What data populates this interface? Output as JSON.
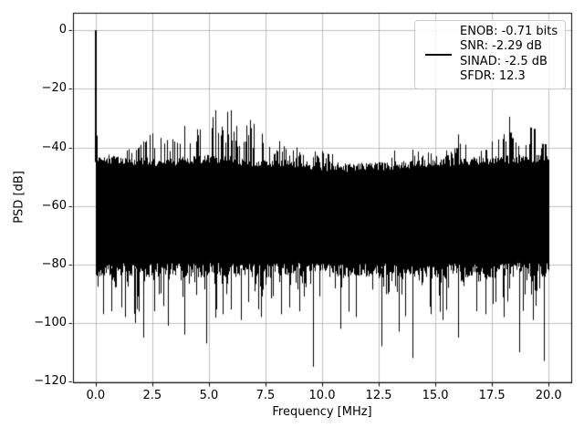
{
  "chart_data": {
    "type": "line",
    "title": "",
    "xlabel": "Frequency [MHz]",
    "ylabel": "PSD [dB]",
    "xlim": [
      -1,
      21
    ],
    "ylim": [
      -120.3,
      6
    ],
    "xticks": [
      0,
      2.5,
      5,
      7.5,
      10,
      12.5,
      15,
      17.5,
      20
    ],
    "xticklabels": [
      "0.0",
      "2.5",
      "5.0",
      "7.5",
      "10.0",
      "12.5",
      "15.0",
      "17.5",
      "20.0"
    ],
    "yticks": [
      0,
      -20,
      -40,
      -60,
      -80,
      -100,
      -120
    ],
    "yticklabels": [
      "0",
      "−20",
      "−40",
      "−60",
      "−80",
      "−100",
      "−120"
    ],
    "grid": true,
    "grid_color": "#b0b0b0",
    "spine_color": "#000000",
    "line_color": "#000000",
    "background_color": "#ffffff",
    "legend": {
      "position": "upper right",
      "edge_color": "#cccccc",
      "face_color": "#ffffff",
      "face_alpha": 0.8,
      "handle_color": "#000000",
      "lines": [
        "ENOB: -0.71 bits",
        "SNR: -2.29 dB",
        "SINAD: -2.5 dB",
        "SFDR: 12.3"
      ]
    },
    "signal": {
      "dc_spike": {
        "freq_mhz": 0.0,
        "peak_db": 0
      },
      "noise_dense_bottom_db": -82,
      "noise_top_envelope_db": [
        [
          0,
          -43.5
        ],
        [
          1,
          -44.5
        ],
        [
          3,
          -45
        ],
        [
          5,
          -44
        ],
        [
          7,
          -45
        ],
        [
          9,
          -46
        ],
        [
          11,
          -47
        ],
        [
          12.5,
          -46.5
        ],
        [
          14,
          -46
        ],
        [
          15.5,
          -45
        ],
        [
          17,
          -44.5
        ],
        [
          18.5,
          -44
        ],
        [
          20,
          -43.5
        ]
      ],
      "spur_peak_envelope_db": [
        [
          0,
          -43
        ],
        [
          0.8,
          -41
        ],
        [
          1.6,
          -39
        ],
        [
          2.2,
          -34
        ],
        [
          2.6,
          -33
        ],
        [
          3.1,
          -35
        ],
        [
          3.6,
          -32.5
        ],
        [
          4.2,
          -31
        ],
        [
          4.6,
          -29
        ],
        [
          5.0,
          -25.5
        ],
        [
          5.4,
          -26.5
        ],
        [
          5.9,
          -27
        ],
        [
          6.3,
          -28.5
        ],
        [
          6.8,
          -30.5
        ],
        [
          7.4,
          -33
        ],
        [
          7.9,
          -35.5
        ],
        [
          8.5,
          -37
        ],
        [
          9.2,
          -38.5
        ],
        [
          9.7,
          -40
        ],
        [
          10.3,
          -41.5
        ],
        [
          11,
          -43.5
        ],
        [
          11.8,
          -45
        ],
        [
          12.4,
          -44
        ],
        [
          13.0,
          -41.5
        ],
        [
          13.5,
          -37.5
        ],
        [
          14.1,
          -39.5
        ],
        [
          14.7,
          -40.5
        ],
        [
          15.3,
          -41.5
        ],
        [
          15.9,
          -34.5
        ],
        [
          16.5,
          -37
        ],
        [
          17.1,
          -34
        ],
        [
          17.6,
          -30
        ],
        [
          18.1,
          -28.5
        ],
        [
          18.6,
          -31.5
        ],
        [
          19.1,
          -28.5
        ],
        [
          19.5,
          -30.5
        ],
        [
          20,
          -35.5
        ]
      ],
      "deep_nulls": [
        [
          0.33,
          -97
        ],
        [
          0.7,
          -96
        ],
        [
          1.3,
          -98
        ],
        [
          1.75,
          -100
        ],
        [
          2.1,
          -105
        ],
        [
          2.6,
          -96
        ],
        [
          3.2,
          -101
        ],
        [
          3.9,
          -104
        ],
        [
          4.9,
          -107
        ],
        [
          5.6,
          -97
        ],
        [
          6.4,
          -99
        ],
        [
          7.3,
          -98
        ],
        [
          8.2,
          -97
        ],
        [
          9.0,
          -96
        ],
        [
          9.6,
          -115
        ],
        [
          10.8,
          -102
        ],
        [
          11.5,
          -98
        ],
        [
          12.6,
          -108
        ],
        [
          13.4,
          -103
        ],
        [
          14.0,
          -112
        ],
        [
          14.8,
          -97
        ],
        [
          15.3,
          -99
        ],
        [
          16.0,
          -105
        ],
        [
          16.8,
          -96
        ],
        [
          17.2,
          -97
        ],
        [
          18.0,
          -98
        ],
        [
          18.7,
          -110
        ],
        [
          19.3,
          -99
        ],
        [
          19.8,
          -113
        ]
      ]
    }
  }
}
